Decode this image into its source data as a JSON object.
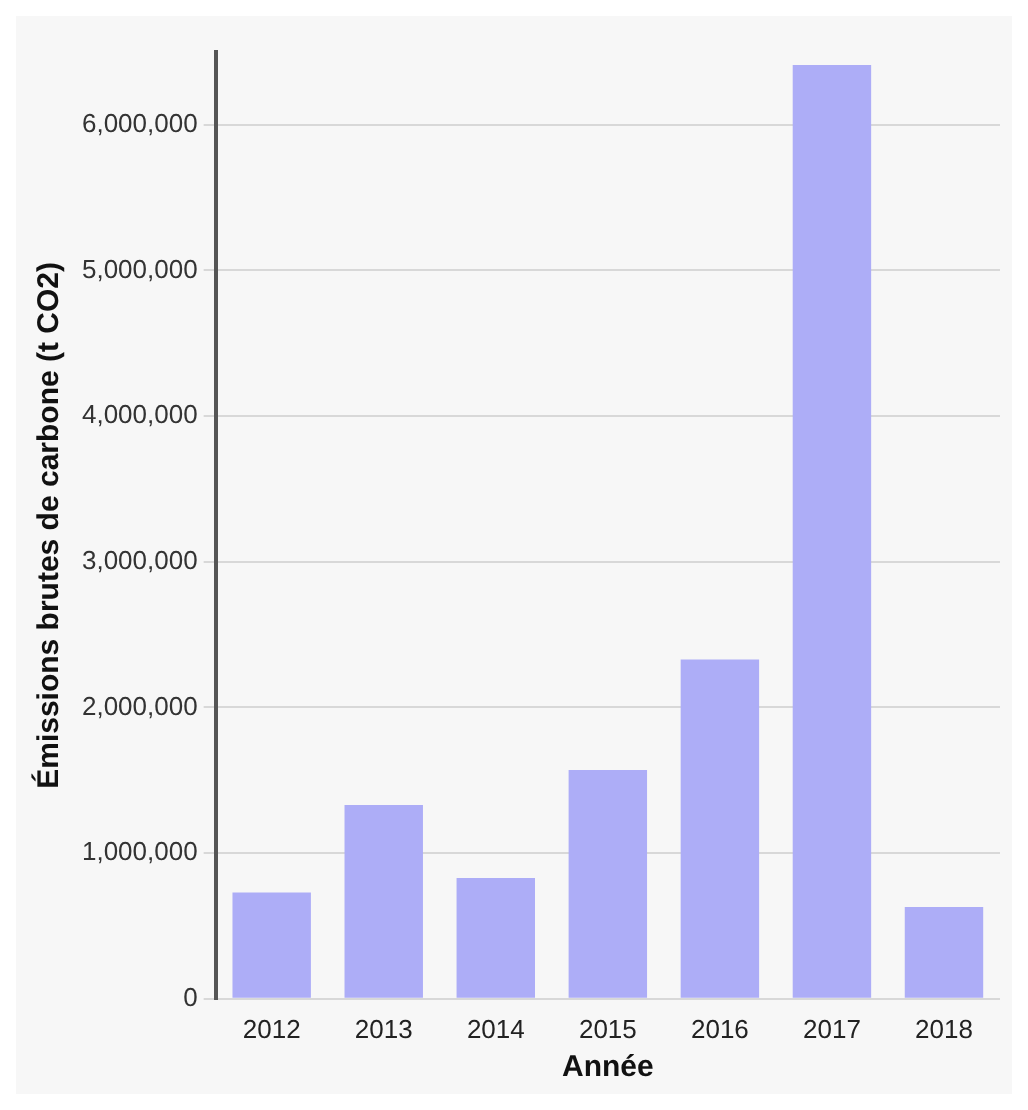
{
  "chart_data": {
    "type": "bar",
    "xlabel": "Année",
    "ylabel": "Émissions brutes de carbone (t CO2)",
    "categories": [
      "2012",
      "2013",
      "2014",
      "2015",
      "2016",
      "2017",
      "2018"
    ],
    "values": [
      730000,
      1330000,
      830000,
      1570000,
      2330000,
      6410000,
      630000
    ],
    "color": "#adadf7",
    "ylim": [
      0,
      6500000
    ],
    "yticks": [
      {
        "value": 0,
        "label": "0"
      },
      {
        "value": 1000000,
        "label": "1,000,000"
      },
      {
        "value": 2000000,
        "label": "2,000,000"
      },
      {
        "value": 3000000,
        "label": "3,000,000"
      },
      {
        "value": 4000000,
        "label": "4,000,000"
      },
      {
        "value": 5000000,
        "label": "5,000,000"
      },
      {
        "value": 6000000,
        "label": "6,000,000"
      }
    ],
    "grid": "y"
  }
}
